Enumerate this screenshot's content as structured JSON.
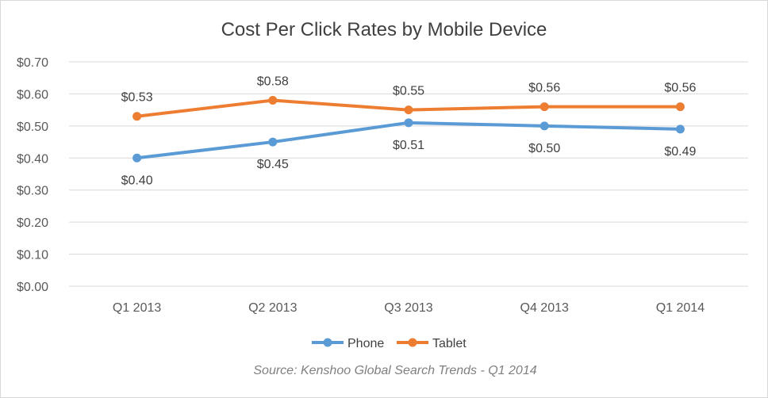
{
  "chart_data": {
    "type": "line",
    "title": "Cost Per Click Rates by Mobile Device",
    "categories": [
      "Q1 2013",
      "Q2 2013",
      "Q3 2013",
      "Q4 2013",
      "Q1 2014"
    ],
    "series": [
      {
        "name": "Phone",
        "color": "#5b9bd5",
        "values": [
          0.4,
          0.45,
          0.51,
          0.5,
          0.49
        ],
        "labels": [
          "$0.40",
          "$0.45",
          "$0.51",
          "$0.50",
          "$0.49"
        ],
        "label_position": "below"
      },
      {
        "name": "Tablet",
        "color": "#ed7d31",
        "values": [
          0.53,
          0.58,
          0.55,
          0.56,
          0.56
        ],
        "labels": [
          "$0.53",
          "$0.58",
          "$0.55",
          "$0.56",
          "$0.56"
        ],
        "label_position": "above"
      }
    ],
    "yticks": [
      "$0.00",
      "$0.10",
      "$0.20",
      "$0.30",
      "$0.40",
      "$0.50",
      "$0.60",
      "$0.70"
    ],
    "ylim": [
      0,
      0.7
    ],
    "grid": true,
    "legend_position": "bottom",
    "xlabel": "",
    "ylabel": "",
    "source": "Source: Kenshoo Global Search Trends - Q1 2014"
  }
}
